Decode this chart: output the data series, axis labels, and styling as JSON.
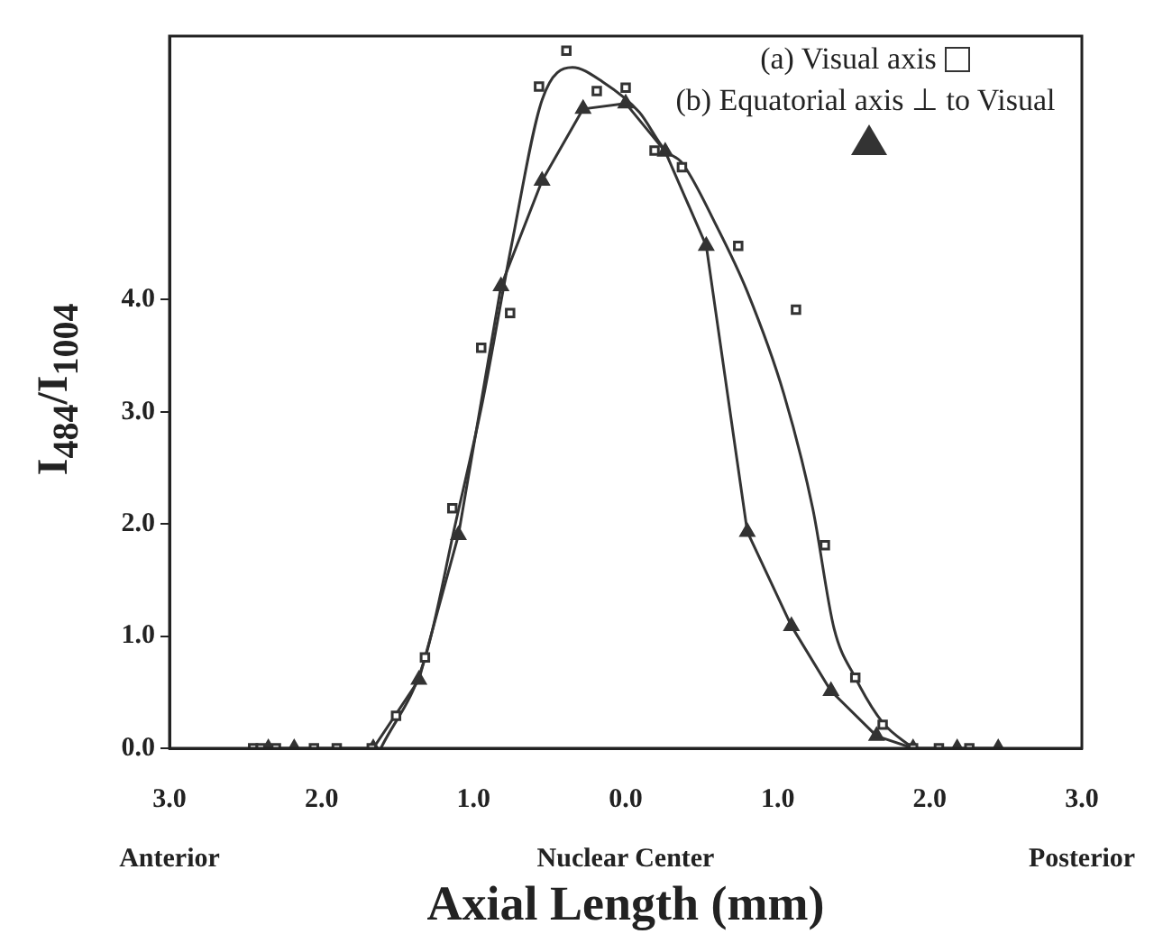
{
  "chart_data": {
    "type": "scatter",
    "xlabel": "Axial Length (mm)",
    "ylabel": "I$_{484}$/I$_{1004}$",
    "xlim": [
      -3,
      3
    ],
    "xticks": [
      {
        "value": -3,
        "label": "3.0\nAnterior"
      },
      {
        "value": -2,
        "label": "2.0"
      },
      {
        "value": -1,
        "label": "1.0"
      },
      {
        "value": 0,
        "label": "0.0\nNuclear Center"
      },
      {
        "value": 1,
        "label": "1.0"
      },
      {
        "value": 2,
        "label": "2.0"
      },
      {
        "value": 3,
        "label": "3.0\nPosterior"
      }
    ],
    "ylim": [
      0,
      6.35
    ],
    "yticks": [
      {
        "value": 0,
        "label": "0.0"
      },
      {
        "value": 1,
        "label": "1.0"
      },
      {
        "value": 2,
        "label": "2.0"
      },
      {
        "value": 3,
        "label": "3.0"
      },
      {
        "value": 4,
        "label": "4.0"
      }
    ],
    "grid": false,
    "legend": "top right",
    "series": [
      {
        "name": "(a) Visual axis",
        "marker": "square",
        "color": "#333333",
        "x": [
          -2.45,
          -2.4,
          -2.3,
          -2.05,
          -1.9,
          -1.67,
          -1.51,
          -1.32,
          -1.14,
          -0.95,
          -0.76,
          -0.57,
          -0.39,
          -0.19,
          0.0,
          0.19,
          0.37,
          0.74,
          1.12,
          1.31,
          1.51,
          1.69,
          1.89,
          2.06,
          2.26
        ],
        "values": [
          0,
          0,
          0,
          0,
          0,
          0,
          0.29,
          0.81,
          2.14,
          3.57,
          3.88,
          5.9,
          6.22,
          5.86,
          5.89,
          5.33,
          5.18,
          4.48,
          3.91,
          1.81,
          0.63,
          0.21,
          0,
          0,
          0
        ]
      },
      {
        "name": "(b) Equatorial axis ⊥ to Visual",
        "type": "line",
        "marker": "triangle",
        "color": "#333333",
        "x": [
          -2.35,
          -2.18,
          -1.66,
          -1.36,
          -1.1,
          -0.82,
          -0.55,
          -0.28,
          0.0,
          0.26,
          0.53,
          0.8,
          1.09,
          1.35,
          1.65,
          1.89,
          2.18,
          2.45
        ],
        "values": [
          0,
          0,
          0,
          0.61,
          1.9,
          4.12,
          5.06,
          5.7,
          5.75,
          5.32,
          4.48,
          1.93,
          1.09,
          0.51,
          0.11,
          0,
          0,
          0
        ]
      },
      {
        "type": "line",
        "marker": "none",
        "color": "#333333",
        "x": [
          -1.61,
          -1.32,
          -1.12,
          -0.94,
          -0.75,
          -0.55,
          -0.35,
          -0.15,
          0.09,
          0.26,
          0.37,
          0.6,
          0.8,
          1.04,
          1.23,
          1.37,
          1.51,
          1.69,
          1.89
        ],
        "values": [
          0,
          0.8,
          2.0,
          3.1,
          4.49,
          5.78,
          6.07,
          5.94,
          5.67,
          5.33,
          5.22,
          4.65,
          4.07,
          3.16,
          2.14,
          1.07,
          0.63,
          0.23,
          0
        ]
      }
    ]
  }
}
